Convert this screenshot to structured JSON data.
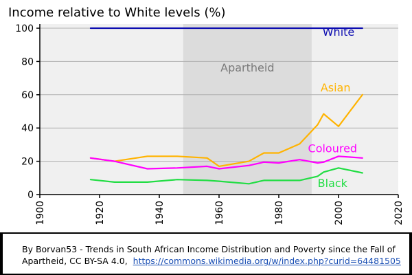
{
  "chart_data": {
    "type": "line",
    "title": "Income relative to White levels (%)",
    "xlabel": "",
    "ylabel": "",
    "xlim": [
      1900,
      2020
    ],
    "ylim": [
      0,
      100
    ],
    "x_ticks": [
      "1900",
      "1920",
      "1940",
      "1960",
      "1980",
      "2000",
      "2020"
    ],
    "y_ticks": [
      "0",
      "20",
      "40",
      "60",
      "80",
      "100"
    ],
    "grid": true,
    "shaded_region": {
      "label": "Apartheid",
      "x_start": 1948,
      "x_end": 1991,
      "color": "#dcdcdc"
    },
    "series": [
      {
        "name": "White",
        "color": "#0b0bb0",
        "x": [
          1917,
          2008
        ],
        "y": [
          100,
          100
        ]
      },
      {
        "name": "Asian",
        "color": "#ffb300",
        "x": [
          1917,
          1925,
          1936,
          1946,
          1956,
          1960,
          1970,
          1975,
          1980,
          1987,
          1993,
          1995,
          2000,
          2008
        ],
        "y": [
          22,
          20,
          23,
          23,
          22,
          17,
          20,
          25,
          25,
          30.5,
          42,
          48.5,
          41,
          60
        ]
      },
      {
        "name": "Coloured",
        "color": "#ff00ff",
        "x": [
          1917,
          1925,
          1936,
          1946,
          1956,
          1960,
          1970,
          1975,
          1980,
          1987,
          1993,
          1995,
          2000,
          2008
        ],
        "y": [
          22,
          20,
          15.5,
          16,
          17,
          15.5,
          17.5,
          19.5,
          19,
          21,
          19,
          19.5,
          23,
          22
        ]
      },
      {
        "name": "Black",
        "color": "#22dd44",
        "x": [
          1917,
          1925,
          1936,
          1946,
          1956,
          1960,
          1970,
          1975,
          1980,
          1987,
          1993,
          1995,
          2000,
          2008
        ],
        "y": [
          9,
          7.5,
          7.5,
          9,
          8.5,
          8,
          6.5,
          8.5,
          8.5,
          8.5,
          11,
          13.5,
          16,
          13
        ]
      }
    ]
  },
  "caption": {
    "text": "By Borvan53 - Trends in South African Income Distribution and Poverty since the Fall of Apartheid, CC BY-SA 4.0,",
    "link": "https://commons.wikimedia.org/w/index.php?curid=64481505"
  },
  "colors": {
    "frame": "#000000",
    "axis": "#000000",
    "grid": "#b0b0b0",
    "region_text": "#7a7a7a"
  }
}
